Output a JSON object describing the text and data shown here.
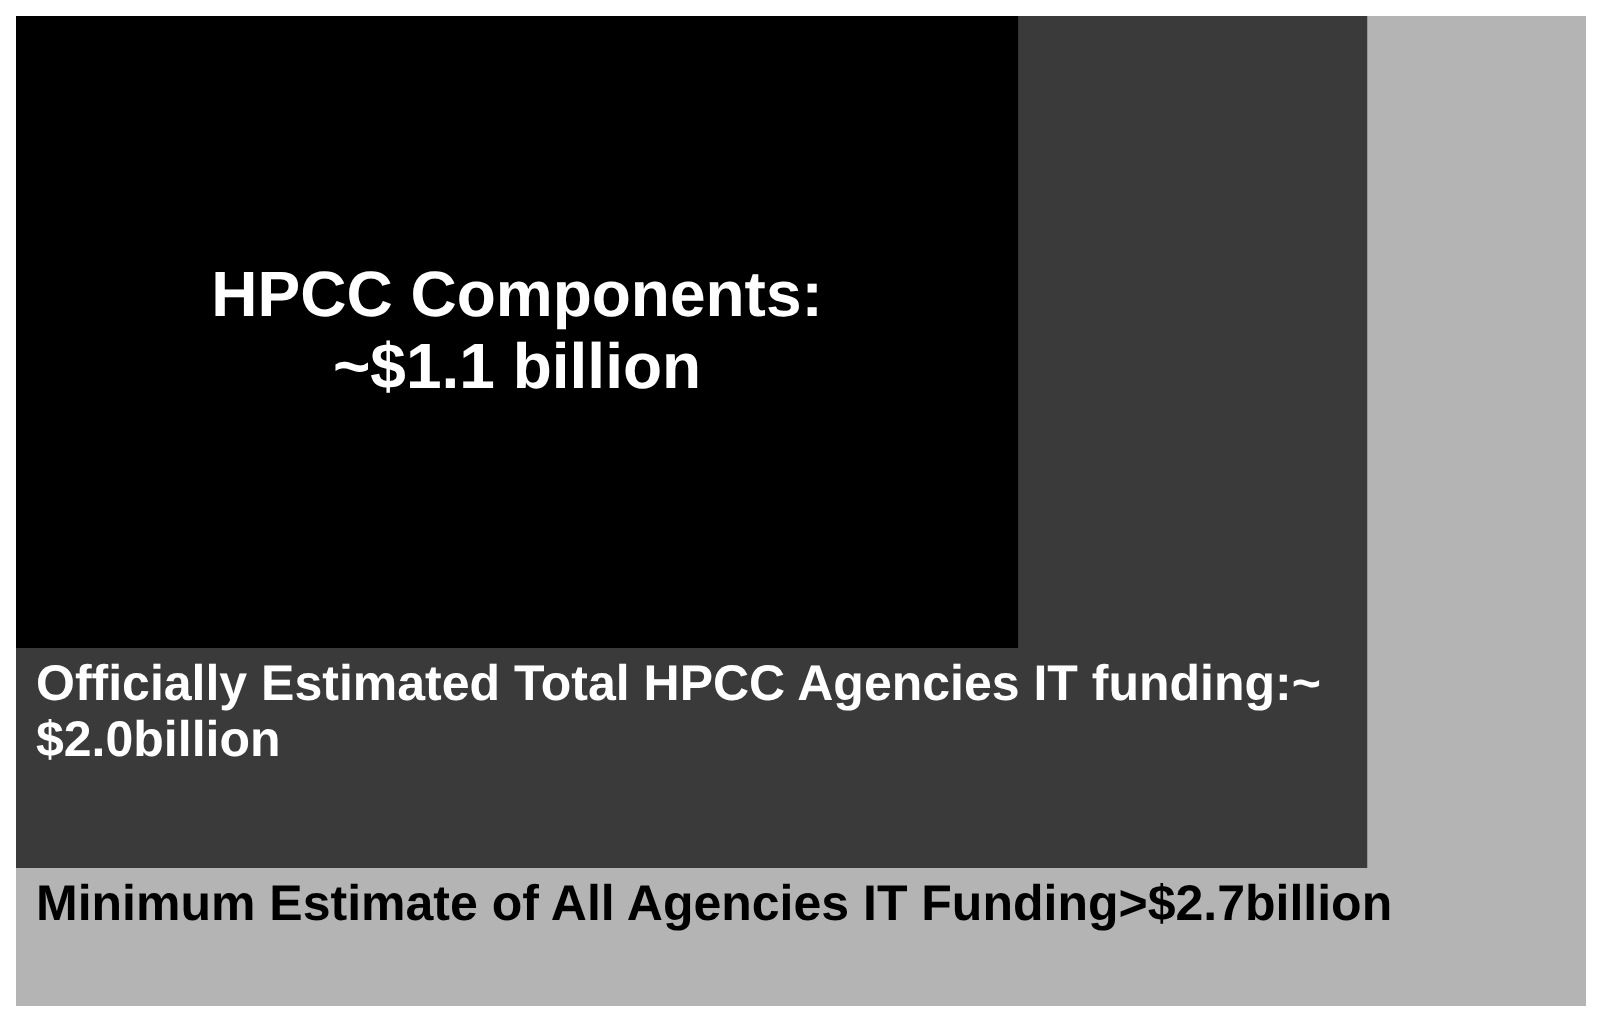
{
  "chart_data": {
    "type": "other",
    "categories": [
      "HPCC Components:\n~",
      "Officially Estimated Total HPCC Agencies IT funding:~",
      "Minimum Estimate of All Agencies IT Funding>"
    ],
    "values": [
      1.1,
      2.0,
      2.7
    ],
    "value_labels": [
      "$1.1 billion",
      "$2.0billion",
      "$2.7billion"
    ],
    "colors": [
      "#000000",
      "#3a3a3a",
      "#b4b4b4"
    ]
  }
}
